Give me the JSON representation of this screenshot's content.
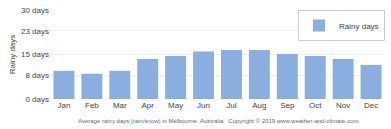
{
  "chart_data": {
    "type": "bar",
    "categories": [
      "Jan",
      "Feb",
      "Mar",
      "Apr",
      "May",
      "Jun",
      "Jul",
      "Aug",
      "Sep",
      "Oct",
      "Nov",
      "Dec"
    ],
    "series": [
      {
        "name": "Rainy days",
        "color": "#8aaee0",
        "values": [
          9.5,
          8.5,
          9.5,
          13.5,
          14.5,
          16.0,
          16.5,
          16.5,
          15.2,
          14.5,
          13.5,
          11.5
        ]
      }
    ],
    "ylabel": "Rainy days",
    "ylim": [
      0,
      30
    ],
    "yticks": [
      {
        "value": 0,
        "label": "0 days"
      },
      {
        "value": 8,
        "label": "8 days"
      },
      {
        "value": 15,
        "label": "15 days"
      },
      {
        "value": 23,
        "label": "23 days"
      },
      {
        "value": 30,
        "label": "30 days"
      }
    ],
    "grid": true,
    "legend": "upper right",
    "caption": "Average rainy days (rain/snow) in Melbourne, Australia   Copyright © 2019 www.weather-and-climate.com"
  }
}
